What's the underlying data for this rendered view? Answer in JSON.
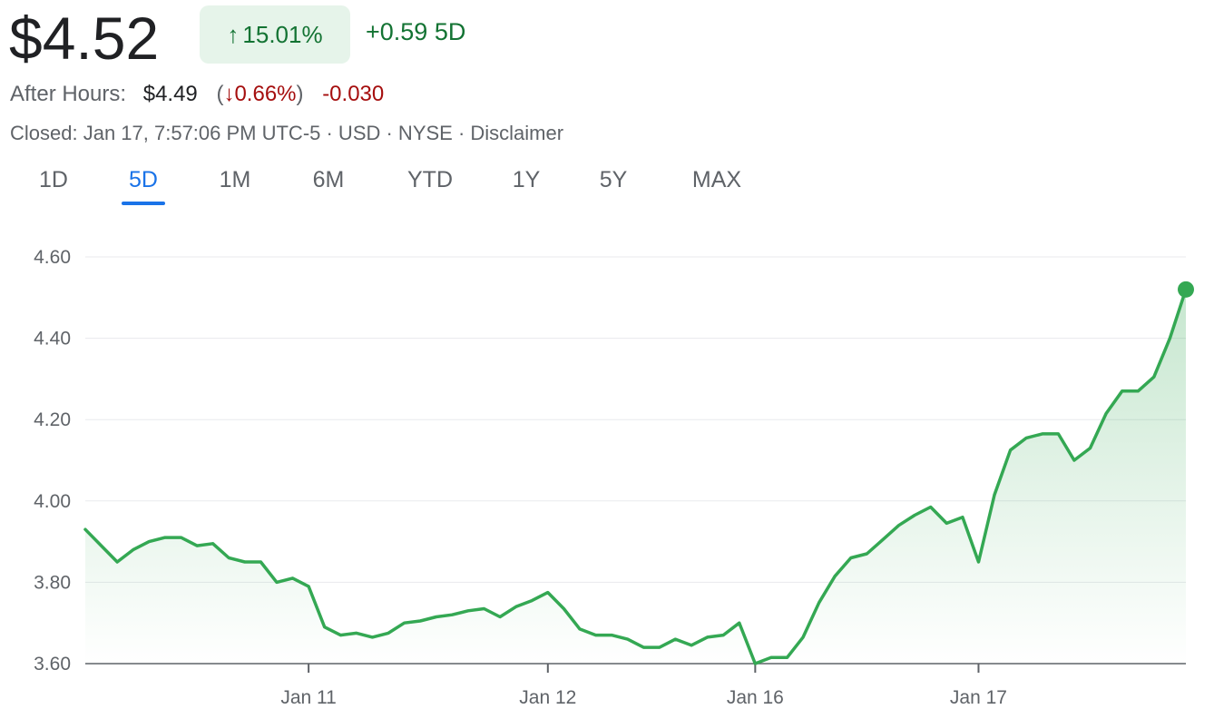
{
  "header": {
    "price": "$4.52",
    "change_arrow": "↑",
    "change_percent": "15.01%",
    "change_abs": "+0.59 5D",
    "after_hours_label": "After Hours:",
    "after_hours_price": "$4.49",
    "after_hours_arrow": "↓",
    "after_hours_percent": "0.66%",
    "after_hours_abs": "-0.030",
    "closed_text": "Closed: Jan 17, 7:57:06 PM UTC-5 · USD · NYSE · Disclaimer"
  },
  "tabs": [
    {
      "label": "1D",
      "active": false
    },
    {
      "label": "5D",
      "active": true
    },
    {
      "label": "1M",
      "active": false
    },
    {
      "label": "6M",
      "active": false
    },
    {
      "label": "YTD",
      "active": false
    },
    {
      "label": "1Y",
      "active": false
    },
    {
      "label": "5Y",
      "active": false
    },
    {
      "label": "MAX",
      "active": false
    }
  ],
  "colors": {
    "line": "#34a853",
    "positive": "#137333",
    "negative": "#a50e0e",
    "badge_bg": "#e6f4ea",
    "active_tab": "#1a73e8"
  },
  "chart_data": {
    "type": "area",
    "ylim": [
      3.6,
      4.6
    ],
    "yticks": [
      "4.60",
      "4.40",
      "4.20",
      "4.00",
      "3.80",
      "3.60"
    ],
    "xticks": [
      {
        "label": "Jan 11",
        "index": 14
      },
      {
        "label": "Jan 12",
        "index": 29
      },
      {
        "label": "Jan 16",
        "index": 42
      },
      {
        "label": "Jan 17",
        "index": 56
      }
    ],
    "grid": true,
    "series": [
      {
        "values": [
          3.93,
          3.89,
          3.85,
          3.88,
          3.9,
          3.91,
          3.91,
          3.89,
          3.895,
          3.86,
          3.85,
          3.85,
          3.8,
          3.81,
          3.79,
          3.69,
          3.67,
          3.675,
          3.665,
          3.675,
          3.7,
          3.705,
          3.715,
          3.72,
          3.73,
          3.735,
          3.715,
          3.74,
          3.755,
          3.775,
          3.735,
          3.685,
          3.67,
          3.67,
          3.66,
          3.64,
          3.64,
          3.66,
          3.645,
          3.665,
          3.67,
          3.7,
          3.6,
          3.615,
          3.615,
          3.665,
          3.75,
          3.815,
          3.86,
          3.87,
          3.905,
          3.94,
          3.965,
          3.985,
          3.945,
          3.96,
          3.85,
          4.015,
          4.125,
          4.155,
          4.165,
          4.165,
          4.1,
          4.13,
          4.215,
          4.27,
          4.27,
          4.305,
          4.4,
          4.52
        ]
      }
    ]
  }
}
